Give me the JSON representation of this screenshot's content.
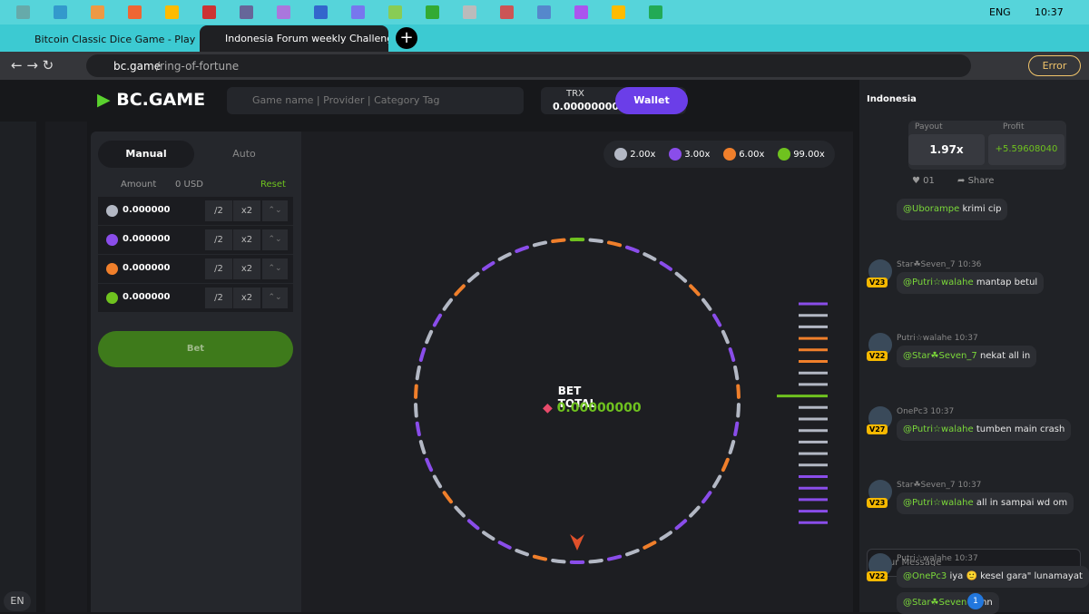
{
  "taskbar": {
    "language": "ENG",
    "time": "10:37"
  },
  "browser": {
    "tabs": [
      "Bitcoin Classic Dice Game - Play I",
      "Indonesia Forum weekly Challeng"
    ],
    "url_domain": "bc.game",
    "url_path": "/ring-of-fortune",
    "error_button": "Error"
  },
  "header": {
    "logo": "BC.GAME",
    "search_placeholder": "Game name | Provider | Category Tag",
    "currency": "TRX",
    "balance": "0.00000000",
    "wallet": "Wallet"
  },
  "sidebar": {
    "language": "EN"
  },
  "bet_panel": {
    "tabs": [
      "Manual",
      "Auto"
    ],
    "amount_label": "Amount",
    "amount_usd": "0 USD",
    "reset": "Reset",
    "rows": [
      {
        "amount": "0.000000",
        "half": "/2",
        "double": "x2"
      },
      {
        "amount": "0.000000",
        "half": "/2",
        "double": "x2"
      },
      {
        "amount": "0.000000",
        "half": "/2",
        "double": "x2"
      },
      {
        "amount": "0.000000",
        "half": "/2",
        "double": "x2"
      }
    ],
    "bet_button": "Bet"
  },
  "game": {
    "multipliers": [
      {
        "label": "2.00x",
        "color": "#b3b8c4"
      },
      {
        "label": "3.00x",
        "color": "#8a4dea"
      },
      {
        "label": "6.00x",
        "color": "#f07f2b"
      },
      {
        "label": "99.00x",
        "color": "#6fc21f"
      }
    ],
    "bet_total_label": "BET TOTAL",
    "bet_total": "0.00000000"
  },
  "chat": {
    "room": "Indonesia",
    "payout_label": "Payout",
    "payout": "1.97x",
    "profit_label": "Profit",
    "profit": "+5.59608040",
    "likes": "01",
    "share": "Share",
    "messages": [
      {
        "mention": "@Uborampe",
        "text": "krimi cip"
      },
      {
        "user": "Star☘Seven_7",
        "time": "10:36",
        "level": "V23",
        "mention": "@Putri☆walahe",
        "text": "mantap betul"
      },
      {
        "user": "Putri☆walahe",
        "time": "10:37",
        "level": "V22",
        "mention": "@Star☘Seven_7",
        "text": "nekat all in"
      },
      {
        "user": "OnePc3",
        "time": "10:37",
        "level": "V27",
        "mention": "@Putri☆walahe",
        "text": "tumben main crash"
      },
      {
        "user": "Star☘Seven_7",
        "time": "10:37",
        "level": "V23",
        "mention": "@Putri☆walahe",
        "text": "all in sampai wd om"
      },
      {
        "user": "Putri☆walahe",
        "time": "10:37",
        "level": "V22",
        "mention": "@OnePc3",
        "text": "iya 🙂 kesel gara\" lunamayat"
      },
      {
        "mention": "@Star☘Seven",
        "text": "minn",
        "badge": "1"
      }
    ],
    "input_placeholder": "Your Message"
  }
}
